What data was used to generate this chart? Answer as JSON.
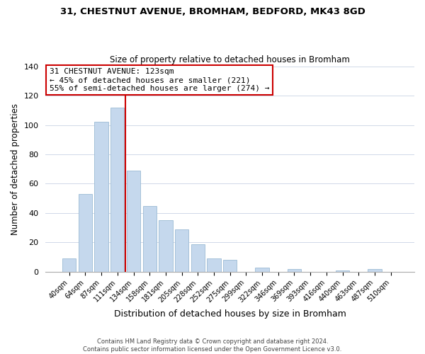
{
  "title1": "31, CHESTNUT AVENUE, BROMHAM, BEDFORD, MK43 8GD",
  "title2": "Size of property relative to detached houses in Bromham",
  "xlabel": "Distribution of detached houses by size in Bromham",
  "ylabel": "Number of detached properties",
  "bar_labels": [
    "40sqm",
    "64sqm",
    "87sqm",
    "111sqm",
    "134sqm",
    "158sqm",
    "181sqm",
    "205sqm",
    "228sqm",
    "252sqm",
    "275sqm",
    "299sqm",
    "322sqm",
    "346sqm",
    "369sqm",
    "393sqm",
    "416sqm",
    "440sqm",
    "463sqm",
    "487sqm",
    "510sqm"
  ],
  "bar_heights": [
    9,
    53,
    102,
    112,
    69,
    45,
    35,
    29,
    19,
    9,
    8,
    0,
    3,
    0,
    2,
    0,
    0,
    1,
    0,
    2,
    0
  ],
  "bar_color": "#c5d8ed",
  "bar_edge_color": "#9bbbd4",
  "vline_color": "#cc0000",
  "annotation_title": "31 CHESTNUT AVENUE: 123sqm",
  "annotation_line1": "← 45% of detached houses are smaller (221)",
  "annotation_line2": "55% of semi-detached houses are larger (274) →",
  "annotation_box_color": "#ffffff",
  "annotation_box_edge": "#cc0000",
  "ylim": [
    0,
    140
  ],
  "footer1": "Contains HM Land Registry data © Crown copyright and database right 2024.",
  "footer2": "Contains public sector information licensed under the Open Government Licence v3.0."
}
